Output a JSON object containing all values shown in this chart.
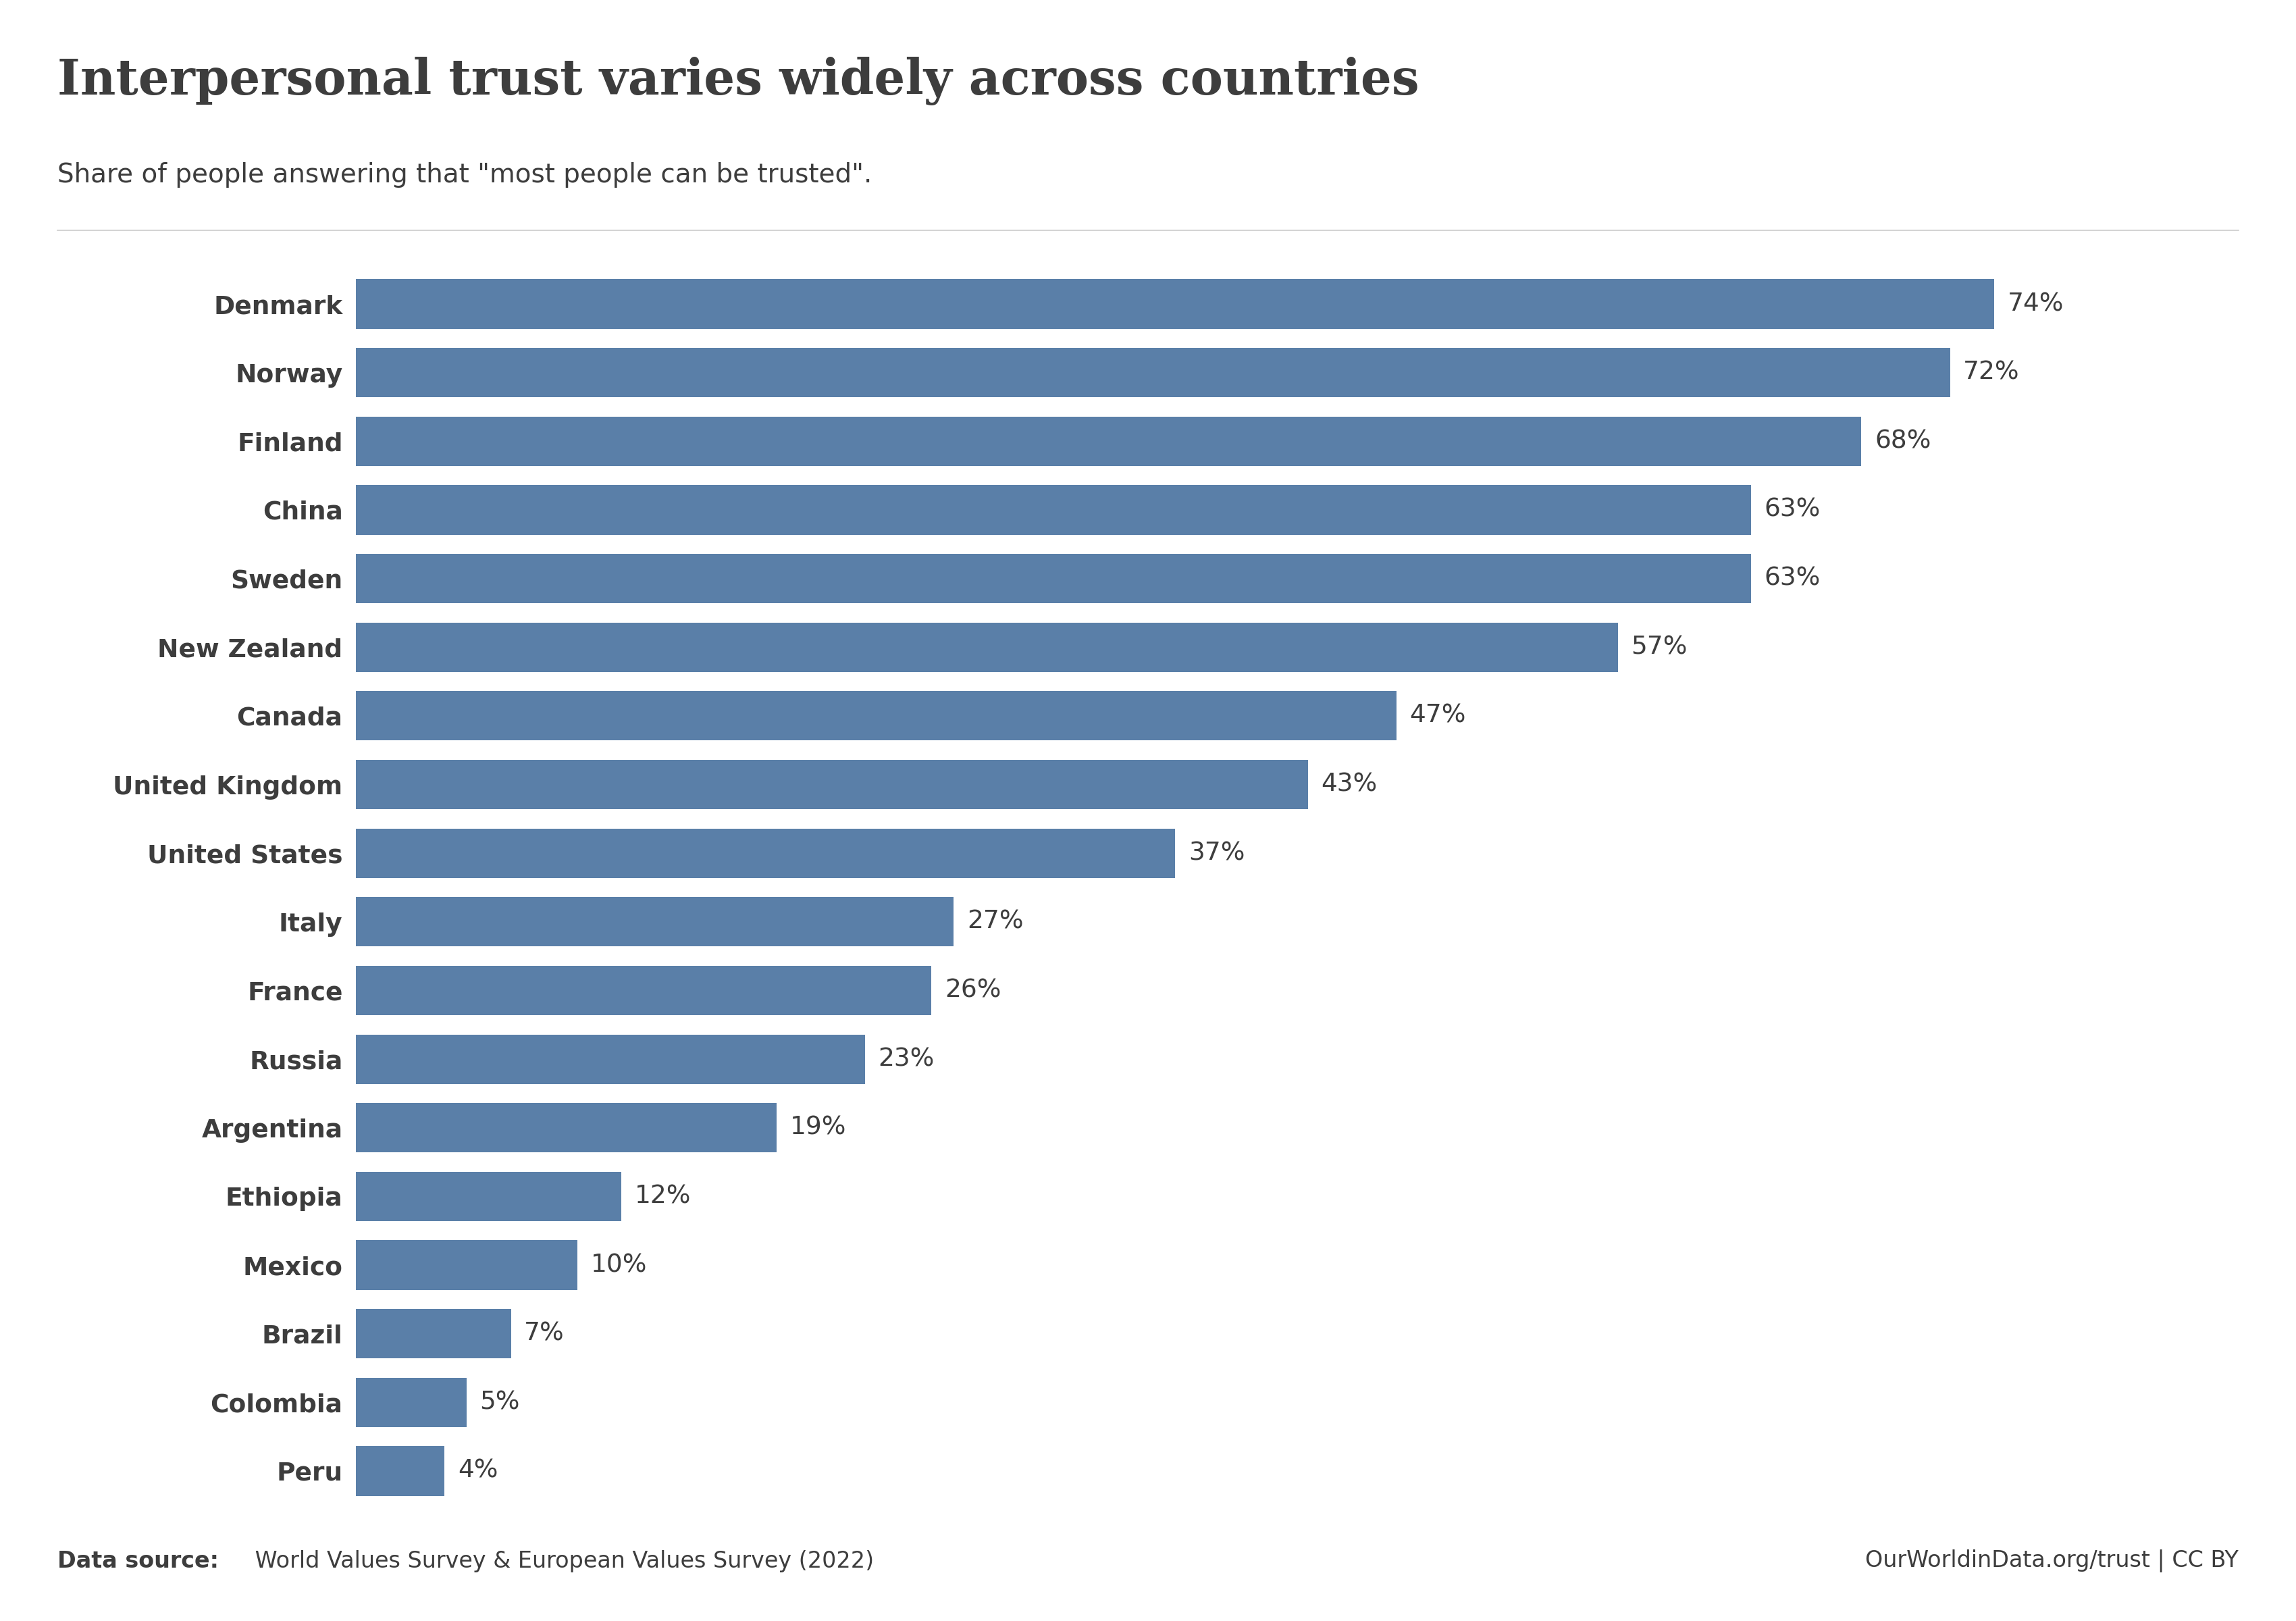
{
  "title": "Interpersonal trust varies widely across countries",
  "subtitle": "Share of people answering that \"most people can be trusted\".",
  "source_bold": "Data source:",
  "source_rest": " World Values Survey & European Values Survey (2022)",
  "source_right": "OurWorldinData.org/trust | CC BY",
  "countries": [
    "Denmark",
    "Norway",
    "Finland",
    "China",
    "Sweden",
    "New Zealand",
    "Canada",
    "United Kingdom",
    "United States",
    "Italy",
    "France",
    "Russia",
    "Argentina",
    "Ethiopia",
    "Mexico",
    "Brazil",
    "Colombia",
    "Peru"
  ],
  "values": [
    74,
    72,
    68,
    63,
    63,
    57,
    47,
    43,
    37,
    27,
    26,
    23,
    19,
    12,
    10,
    7,
    5,
    4
  ],
  "bar_color": "#5a7fa8",
  "background_color": "#ffffff",
  "text_color": "#3d3d3d",
  "title_color": "#3d3d3d",
  "title_fontsize": 52,
  "subtitle_fontsize": 28,
  "bar_label_fontsize": 27,
  "ytick_fontsize": 27,
  "source_fontsize": 24,
  "owid_box_bg": "#152a4e",
  "owid_box_red": "#b23a2a",
  "owid_text_color": "#ffffff"
}
